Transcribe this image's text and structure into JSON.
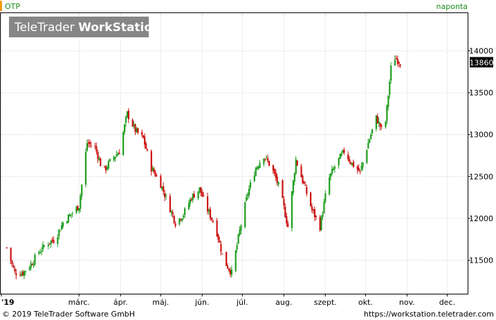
{
  "header": {
    "symbol": "OTP",
    "frequency": "naponta",
    "watermark_light": "TeleTrader ",
    "watermark_bold": "WorkStation"
  },
  "footer": {
    "copyright": "© 2019 TeleTrader Software GmbH",
    "url": "https://workstation.teletrader.com"
  },
  "colors": {
    "up": "#1f9e1f",
    "down": "#cc1111",
    "grid": "#c8c8c8",
    "accent": "#1a8c1a",
    "price_tag_bg": "#000000",
    "watermark_bg": "#808080"
  },
  "chart_data": {
    "type": "candlestick",
    "title": "",
    "ylim": [
      11100,
      14450
    ],
    "y_ticks": [
      11500,
      12000,
      12500,
      13000,
      13500,
      14000
    ],
    "x_labels": [
      {
        "label": "'19",
        "day": 0
      },
      {
        "label": "márc.",
        "day": 58
      },
      {
        "label": "ápr.",
        "day": 89
      },
      {
        "label": "máj.",
        "day": 119
      },
      {
        "label": "jún.",
        "day": 150
      },
      {
        "label": "júl.",
        "day": 180
      },
      {
        "label": "aug.",
        "day": 211
      },
      {
        "label": "szept.",
        "day": 242
      },
      {
        "label": "okt.",
        "day": 272
      },
      {
        "label": "nov.",
        "day": 303
      },
      {
        "label": "dec.",
        "day": 333
      }
    ],
    "last_price": 13860,
    "path_day": [
      4,
      10,
      16,
      22,
      28,
      34,
      40,
      46,
      52,
      58,
      64,
      70,
      76,
      82,
      88,
      94,
      100,
      106,
      112,
      118,
      124,
      130,
      136,
      142,
      148,
      154,
      160,
      166,
      172,
      178,
      184,
      190,
      196,
      202,
      208,
      214,
      220,
      226,
      232,
      238,
      244,
      250,
      256,
      262,
      268,
      274,
      280,
      286,
      292,
      298
    ],
    "path_price": [
      11650,
      11350,
      11350,
      11450,
      11600,
      11700,
      11750,
      11950,
      12050,
      12150,
      12900,
      12850,
      12550,
      12700,
      12800,
      13250,
      13050,
      12950,
      12600,
      12450,
      12200,
      11950,
      12050,
      12250,
      12350,
      12100,
      11900,
      11500,
      11350,
      11850,
      12300,
      12600,
      12750,
      12600,
      12350,
      11900,
      12700,
      12400,
      12100,
      11900,
      12450,
      12650,
      12800,
      12650,
      12550,
      12900,
      13200,
      13000,
      13950,
      13860
    ]
  }
}
